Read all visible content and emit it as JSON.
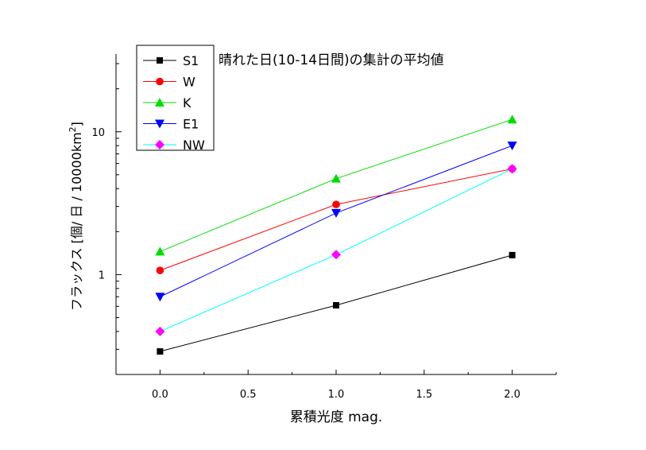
{
  "chart_data": {
    "type": "line",
    "title": "晴れた日(10-14日間)の集計の平均値",
    "xlabel": "累積光度 mag.",
    "ylabel": "フラックス [個/ 日 / 10000km²]",
    "ylabel_parts": {
      "main": "フラックス [個/ 日 / 10000km",
      "sup": "2",
      "close": "]"
    },
    "x_scale": "linear",
    "y_scale": "log",
    "xlim": [
      -0.25,
      2.25
    ],
    "ylim": [
      0.2,
      35
    ],
    "x_ticks": [
      0.0,
      0.5,
      1.0,
      1.5,
      2.0
    ],
    "x_tick_labels": [
      "0.0",
      "0.5",
      "1.0",
      "1.5",
      "2.0"
    ],
    "y_ticks": [
      1,
      10
    ],
    "y_tick_labels": [
      "1",
      "10"
    ],
    "grid": false,
    "legend_position": "top-left",
    "x": [
      0.0,
      1.0,
      2.0
    ],
    "series": [
      {
        "name": "S1",
        "color": "#000000",
        "marker": "square",
        "values": [
          0.29,
          0.61,
          1.37
        ]
      },
      {
        "name": "W",
        "color": "#ff0000",
        "marker": "circle",
        "values": [
          1.07,
          3.1,
          5.5
        ]
      },
      {
        "name": "K",
        "color": "#00dd00",
        "marker": "triangle-up",
        "values": [
          1.45,
          4.7,
          12.2
        ]
      },
      {
        "name": "E1",
        "color": "#0000ff",
        "marker": "triangle-down",
        "values": [
          0.7,
          2.7,
          8.0
        ]
      },
      {
        "name": "NW",
        "color": "#00ffff",
        "marker_color": "#ff00ff",
        "marker": "diamond",
        "values": [
          0.4,
          1.38,
          5.5
        ]
      }
    ]
  }
}
